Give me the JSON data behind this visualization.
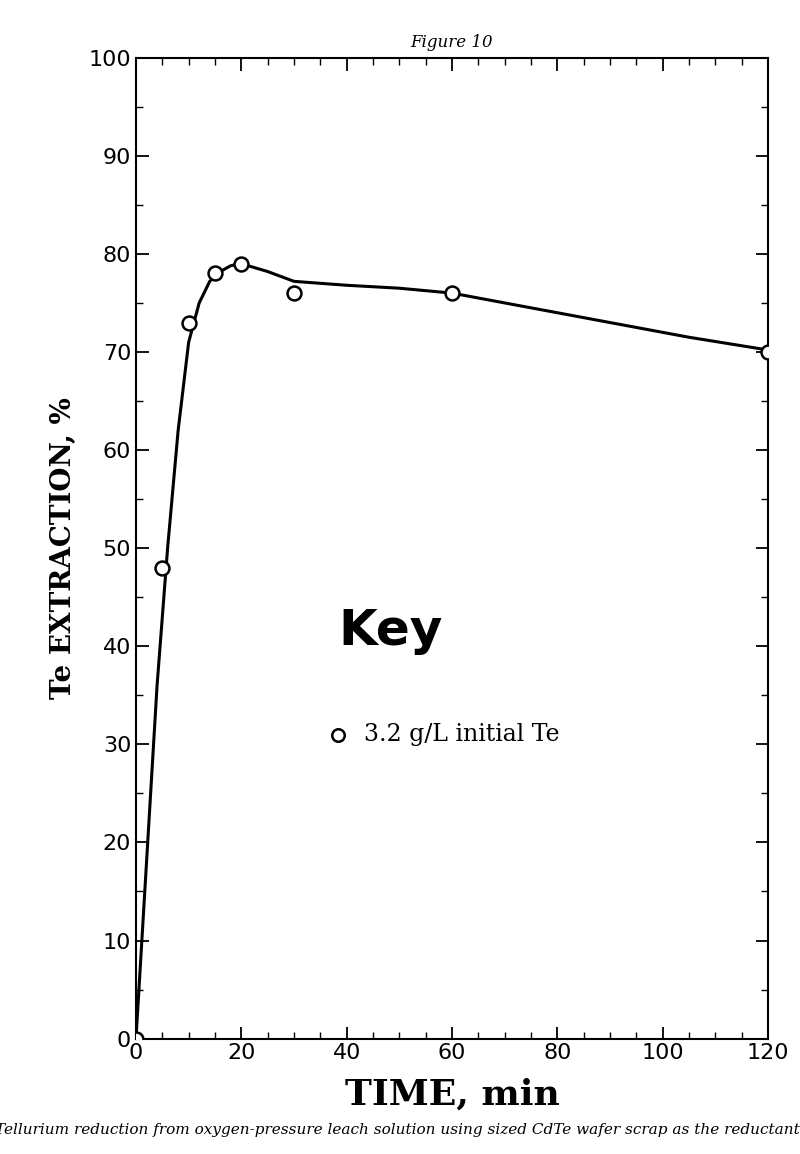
{
  "title": "Figure 10",
  "xlabel": "TIME, min",
  "ylabel": "Te EXTRACTION, %",
  "caption": "Tellurium reduction from oxygen-pressure leach solution using sized CdTe wafer scrap as the reductant.",
  "data_points_x": [
    0,
    5,
    10,
    15,
    20,
    30,
    60,
    120
  ],
  "data_points_y": [
    0,
    48,
    73,
    78,
    79,
    76,
    76,
    70
  ],
  "curve_x": [
    0,
    2,
    4,
    6,
    8,
    10,
    12,
    14,
    16,
    18,
    20,
    25,
    30,
    40,
    50,
    60,
    75,
    90,
    105,
    120
  ],
  "curve_y": [
    0,
    18,
    36,
    50,
    62,
    71,
    75,
    77.2,
    78.2,
    78.8,
    79.0,
    78.2,
    77.2,
    76.8,
    76.5,
    76.0,
    74.5,
    73.0,
    71.5,
    70.2
  ],
  "xlim": [
    0,
    120
  ],
  "ylim": [
    0,
    100
  ],
  "xticks": [
    0,
    20,
    40,
    60,
    80,
    100,
    120
  ],
  "yticks": [
    0,
    10,
    20,
    30,
    40,
    50,
    60,
    70,
    80,
    90,
    100
  ],
  "x_minor_interval": 5,
  "y_minor_interval": 5,
  "marker_size": 10,
  "line_color": "#000000",
  "marker_color": "#000000",
  "key_label": "3.2 g/L initial Te",
  "title_fontsize": 12,
  "xlabel_fontsize": 26,
  "ylabel_fontsize": 20,
  "tick_fontsize": 16,
  "caption_fontsize": 11,
  "key_title_fontsize": 36,
  "key_label_fontsize": 17,
  "background_color": "#ffffff"
}
